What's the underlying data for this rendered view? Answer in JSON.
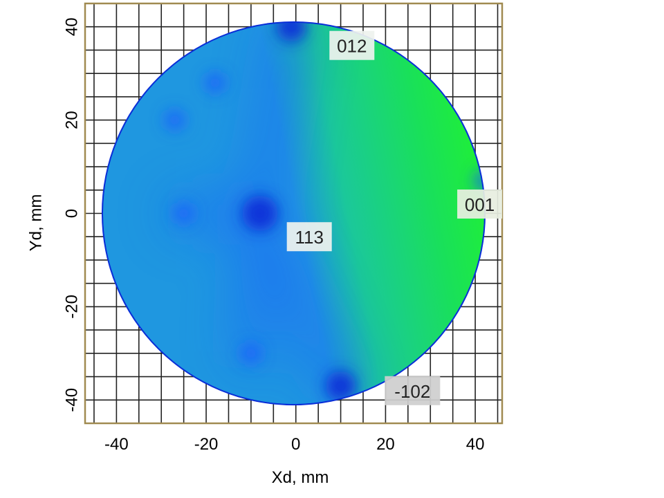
{
  "chart_data": {
    "type": "heatmap",
    "title": "",
    "xlabel": "Xd, mm",
    "ylabel": "Yd, mm",
    "xlim": [
      -47,
      46
    ],
    "ylim": [
      -45,
      45
    ],
    "x_ticks": [
      "-40",
      "-20",
      "0",
      "20",
      "40"
    ],
    "x_tick_values": [
      -40,
      -20,
      0,
      20,
      40
    ],
    "y_ticks": [
      "40",
      "20",
      "0",
      "-20",
      "-40"
    ],
    "y_tick_values": [
      40,
      20,
      0,
      -20,
      -40
    ],
    "grid": "on",
    "detector": {
      "center": [
        -0.5,
        0
      ],
      "radius_mm": 42.5
    },
    "colormap": [
      "#0a2fd8",
      "#1e5bff",
      "#1f97e0",
      "#1bc89a",
      "#19e05a",
      "#22f52a",
      "#ffef00",
      "#ff4a00",
      "#d0005a"
    ],
    "colors": {
      "frame": "#a08a50",
      "grid": "#222222",
      "background": "#ffffff"
    },
    "spots": [
      {
        "x": -8,
        "y": 0,
        "intensity": "strong"
      },
      {
        "x": -1,
        "y": 40,
        "intensity": "medium"
      },
      {
        "x": -18,
        "y": 28,
        "intensity": "weak"
      },
      {
        "x": -27,
        "y": 20,
        "intensity": "weak"
      },
      {
        "x": -25,
        "y": 0,
        "intensity": "weak"
      },
      {
        "x": -10,
        "y": -30,
        "intensity": "weak"
      },
      {
        "x": 10,
        "y": -37,
        "intensity": "medium"
      },
      {
        "x": 42,
        "y": 7,
        "intensity": "weak"
      }
    ],
    "annotations": [
      {
        "text": "012",
        "x": 12.5,
        "y": 36,
        "bg": "#eef2ee"
      },
      {
        "text": "113",
        "x": 3,
        "y": -5,
        "bg": "#eef2ee"
      },
      {
        "text": "001",
        "x": 41,
        "y": 2,
        "bg": "#e7eee0"
      },
      {
        "text": "-102",
        "x": 26,
        "y": -38,
        "bg": "#cfcfcf"
      }
    ]
  }
}
